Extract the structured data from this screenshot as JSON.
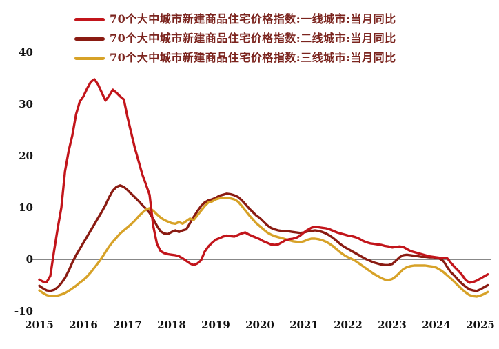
{
  "chart_data": {
    "type": "line",
    "title": "",
    "legend_position": "top-left",
    "grid": false,
    "zero_line": true,
    "x_label": "",
    "y_label": "",
    "x_unit": "year-month",
    "x_start_year": 2015,
    "x_step_months": 1,
    "x_ticks": [
      "2015",
      "2016",
      "2017",
      "2018",
      "2019",
      "2020",
      "2021",
      "2022",
      "2023",
      "2024",
      "2025"
    ],
    "y_ticks": [
      "40",
      "30",
      "20",
      "10",
      "0",
      "-10"
    ],
    "y_tick_values": [
      40,
      30,
      20,
      10,
      0,
      -10
    ],
    "ylim": [
      -10,
      40
    ],
    "xlim_years": [
      2015,
      2025.25
    ],
    "series": [
      {
        "name": "70个大中城市新建商品住宅价格指数:一线城市:当月同比",
        "color": "#C2151B",
        "values": [
          -3.9,
          -4.3,
          -4.4,
          -3.2,
          1.5,
          6.0,
          10.0,
          17.0,
          21.0,
          24.0,
          28.0,
          30.5,
          31.5,
          33.0,
          34.3,
          34.8,
          33.8,
          32.2,
          30.7,
          31.6,
          32.8,
          32.2,
          31.5,
          30.9,
          27.5,
          24.5,
          21.5,
          19.0,
          16.5,
          14.5,
          12.5,
          6.5,
          3.0,
          1.6,
          1.2,
          1.0,
          0.9,
          0.8,
          0.6,
          0.2,
          -0.3,
          -0.8,
          -1.1,
          -0.8,
          -0.2,
          1.5,
          2.5,
          3.2,
          3.8,
          4.1,
          4.4,
          4.6,
          4.5,
          4.4,
          4.7,
          5.0,
          5.2,
          4.8,
          4.5,
          4.2,
          3.9,
          3.5,
          3.2,
          2.9,
          2.8,
          2.9,
          3.3,
          3.7,
          3.9,
          4.0,
          4.2,
          4.6,
          5.2,
          5.7,
          6.1,
          6.3,
          6.2,
          6.1,
          6.0,
          5.8,
          5.5,
          5.2,
          5.0,
          4.8,
          4.6,
          4.5,
          4.3,
          4.0,
          3.6,
          3.3,
          3.1,
          3.0,
          2.9,
          2.8,
          2.6,
          2.5,
          2.3,
          2.4,
          2.5,
          2.4,
          2.0,
          1.6,
          1.4,
          1.2,
          1.0,
          0.8,
          0.6,
          0.5,
          0.4,
          0.3,
          0.3,
          0.2,
          -0.7,
          -1.5,
          -2.2,
          -3.0,
          -4.0,
          -4.5,
          -4.4,
          -4.1,
          -3.7,
          -3.3,
          -2.9
        ]
      },
      {
        "name": "70个大中城市新建商品住宅价格指数:二线城市:当月同比",
        "color": "#8A1B12",
        "values": [
          -5.1,
          -5.6,
          -6.0,
          -6.1,
          -5.9,
          -5.4,
          -4.6,
          -3.6,
          -2.2,
          -0.6,
          0.8,
          2.0,
          3.2,
          4.4,
          5.6,
          6.8,
          8.0,
          9.2,
          10.5,
          12.0,
          13.3,
          14.0,
          14.3,
          14.0,
          13.4,
          12.7,
          12.0,
          11.3,
          10.5,
          9.8,
          9.0,
          7.8,
          6.5,
          5.4,
          5.0,
          4.9,
          5.3,
          5.6,
          5.3,
          5.6,
          5.8,
          7.0,
          8.2,
          9.3,
          10.3,
          11.0,
          11.4,
          11.6,
          11.9,
          12.3,
          12.5,
          12.7,
          12.6,
          12.4,
          12.1,
          11.5,
          10.7,
          9.9,
          9.2,
          8.5,
          8.0,
          7.3,
          6.6,
          6.1,
          5.8,
          5.6,
          5.5,
          5.5,
          5.4,
          5.3,
          5.2,
          5.1,
          5.2,
          5.4,
          5.5,
          5.6,
          5.5,
          5.3,
          5.0,
          4.6,
          4.1,
          3.5,
          2.9,
          2.4,
          2.0,
          1.6,
          1.2,
          0.8,
          0.4,
          0.0,
          -0.3,
          -0.6,
          -0.8,
          -1.0,
          -1.1,
          -1.1,
          -0.9,
          -0.3,
          0.4,
          0.8,
          0.9,
          0.8,
          0.7,
          0.6,
          0.5,
          0.5,
          0.4,
          0.4,
          0.3,
          0.1,
          -0.4,
          -1.5,
          -2.5,
          -3.2,
          -4.0,
          -4.7,
          -5.3,
          -5.8,
          -6.0,
          -6.1,
          -5.8,
          -5.4,
          -5.0
        ]
      },
      {
        "name": "70个大中城市新建商品住宅价格指数:三线城市:当月同比",
        "color": "#D7A228",
        "values": [
          -6.0,
          -6.5,
          -6.9,
          -7.1,
          -7.1,
          -7.0,
          -6.8,
          -6.5,
          -6.1,
          -5.6,
          -5.1,
          -4.5,
          -4.0,
          -3.3,
          -2.5,
          -1.6,
          -0.7,
          0.3,
          1.4,
          2.5,
          3.4,
          4.2,
          5.0,
          5.6,
          6.2,
          6.8,
          7.5,
          8.3,
          9.0,
          9.6,
          9.9,
          9.4,
          8.7,
          8.1,
          7.6,
          7.3,
          7.0,
          6.9,
          7.2,
          6.9,
          7.4,
          7.9,
          7.6,
          8.5,
          9.4,
          10.3,
          11.0,
          11.2,
          11.6,
          11.8,
          11.9,
          11.9,
          11.8,
          11.6,
          11.2,
          10.4,
          9.5,
          8.6,
          7.8,
          7.0,
          6.4,
          5.8,
          5.2,
          4.8,
          4.5,
          4.3,
          4.1,
          3.9,
          3.7,
          3.5,
          3.4,
          3.3,
          3.5,
          3.8,
          4.0,
          4.0,
          3.9,
          3.7,
          3.4,
          3.0,
          2.5,
          1.9,
          1.3,
          0.8,
          0.4,
          0.1,
          -0.3,
          -0.8,
          -1.3,
          -1.8,
          -2.3,
          -2.8,
          -3.2,
          -3.6,
          -3.9,
          -4.0,
          -3.8,
          -3.3,
          -2.6,
          -1.9,
          -1.5,
          -1.3,
          -1.2,
          -1.2,
          -1.2,
          -1.2,
          -1.3,
          -1.4,
          -1.6,
          -2.0,
          -2.5,
          -3.1,
          -3.7,
          -4.4,
          -5.1,
          -5.8,
          -6.4,
          -6.9,
          -7.1,
          -7.2,
          -7.0,
          -6.7,
          -6.3
        ]
      }
    ]
  }
}
